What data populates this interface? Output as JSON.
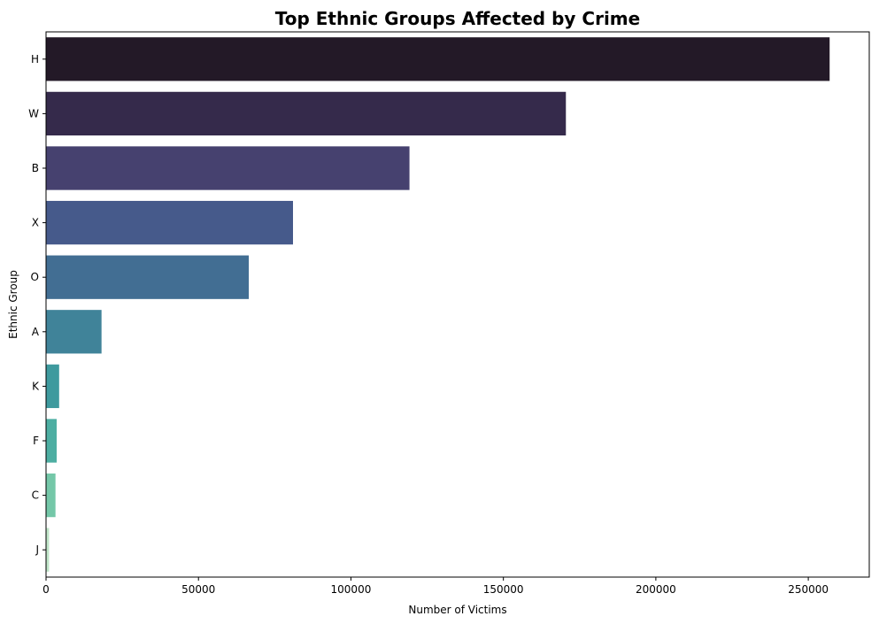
{
  "chart_data": {
    "type": "bar",
    "orientation": "horizontal",
    "title": "Top Ethnic Groups Affected by Crime",
    "xlabel": "Number of Victims",
    "ylabel": "Ethnic Group",
    "categories": [
      "H",
      "W",
      "B",
      "X",
      "O",
      "A",
      "K",
      "F",
      "C",
      "J"
    ],
    "values": [
      257000,
      170500,
      119200,
      81000,
      66500,
      18200,
      4300,
      3500,
      3100,
      1000
    ],
    "xlim": [
      0,
      270000
    ],
    "x_ticks": [
      0,
      50000,
      100000,
      150000,
      200000,
      250000
    ],
    "x_tick_labels": [
      "0",
      "50000",
      "100000",
      "150000",
      "200000",
      "250000"
    ],
    "grid": false,
    "colors": [
      "#231927",
      "#352a4b",
      "#46416f",
      "#465a8b",
      "#426e93",
      "#408399",
      "#3e9a9e",
      "#4daea2",
      "#74c7a8",
      "#bfe5c8"
    ]
  }
}
